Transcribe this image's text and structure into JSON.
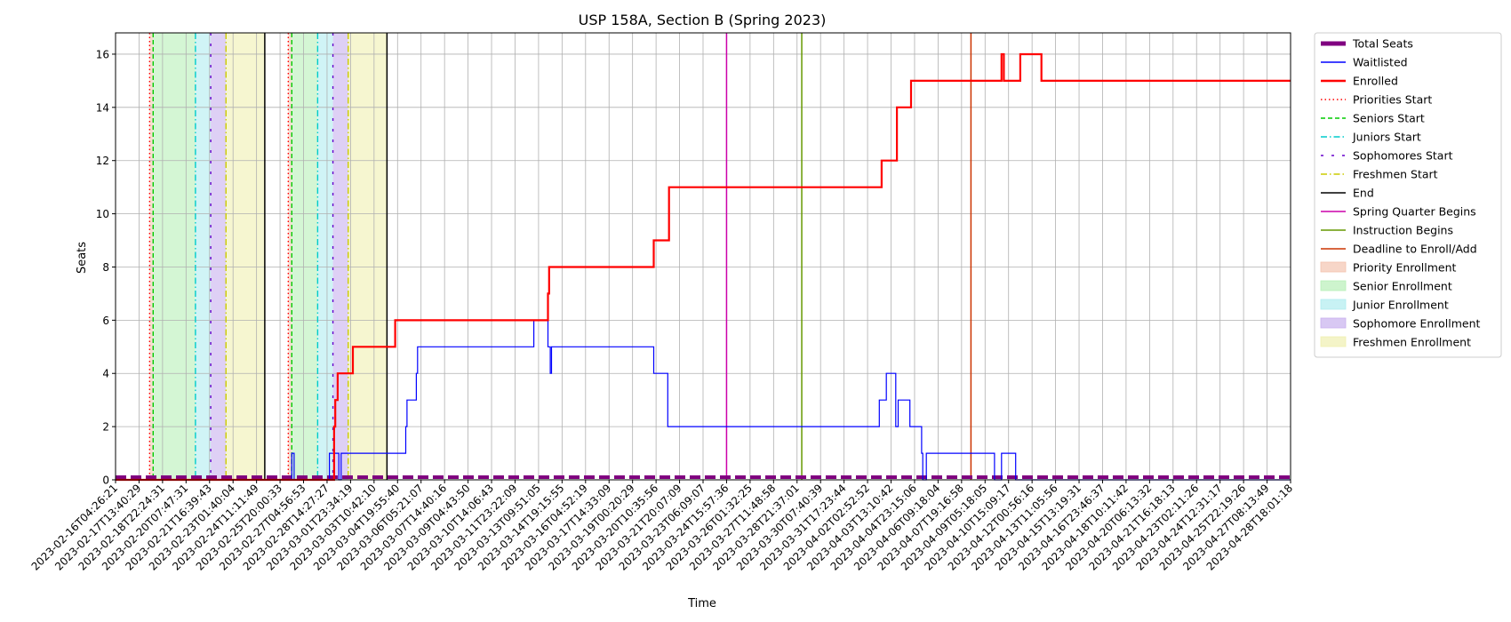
{
  "chart_data": {
    "type": "line",
    "title": "USP 158A, Section B (Spring 2023)",
    "xlabel": "Time",
    "ylabel": "Seats",
    "ylim": [
      0,
      16.8
    ],
    "yticks": [
      0,
      2,
      4,
      6,
      8,
      10,
      12,
      14,
      16
    ],
    "grid": true,
    "legend_position": "outside-right-top",
    "x_tick_labels": [
      "2023-02-16T04:26:21",
      "2023-02-17T13:40:29",
      "2023-02-18T22:24:31",
      "2023-02-20T07:47:31",
      "2023-02-21T16:39:43",
      "2023-02-23T01:40:04",
      "2023-02-24T11:11:49",
      "2023-02-25T20:00:33",
      "2023-02-27T04:56:53",
      "2023-02-28T14:27:27",
      "2023-03-01T23:34:19",
      "2023-03-03T10:42:10",
      "2023-03-04T19:55:40",
      "2023-03-06T05:21:07",
      "2023-03-07T14:40:16",
      "2023-03-09T04:43:50",
      "2023-03-10T14:06:43",
      "2023-03-11T23:22:09",
      "2023-03-13T09:51:05",
      "2023-03-14T19:15:55",
      "2023-03-16T04:52:19",
      "2023-03-17T14:33:09",
      "2023-03-19T00:20:29",
      "2023-03-20T10:35:56",
      "2023-03-21T20:07:09",
      "2023-03-23T06:09:07",
      "2023-03-24T15:57:36",
      "2023-03-26T01:32:25",
      "2023-03-27T11:48:58",
      "2023-03-28T21:37:01",
      "2023-03-30T07:40:39",
      "2023-03-31T17:23:44",
      "2023-04-02T02:52:52",
      "2023-04-03T13:10:42",
      "2023-04-04T23:15:06",
      "2023-04-06T09:18:04",
      "2023-04-07T19:16:58",
      "2023-04-09T05:18:05",
      "2023-04-10T15:09:17",
      "2023-04-12T00:56:16",
      "2023-04-13T11:05:56",
      "2023-04-15T13:19:31",
      "2023-04-16T23:46:37",
      "2023-04-18T10:11:42",
      "2023-04-20T06:13:32",
      "2023-04-21T16:18:13",
      "2023-04-23T02:11:26",
      "2023-04-24T12:31:17",
      "2023-04-25T22:19:26",
      "2023-04-27T08:13:49",
      "2023-04-28T18:01:18"
    ],
    "series": [
      {
        "name": "Total Seats",
        "color": "#800080",
        "style": "thick-dashed",
        "points": [
          [
            0,
            0.1
          ],
          [
            50.0,
            0.1
          ]
        ]
      },
      {
        "name": "Waitlisted",
        "color": "#0000ff",
        "style": "step",
        "points": [
          [
            0,
            0
          ],
          [
            7.5,
            0
          ],
          [
            7.5,
            1
          ],
          [
            7.6,
            1
          ],
          [
            7.6,
            0
          ],
          [
            9.1,
            0
          ],
          [
            9.1,
            1
          ],
          [
            9.5,
            1
          ],
          [
            9.5,
            0
          ],
          [
            9.6,
            0
          ],
          [
            9.6,
            1
          ],
          [
            12.35,
            1
          ],
          [
            12.35,
            2
          ],
          [
            12.4,
            2
          ],
          [
            12.4,
            3
          ],
          [
            12.8,
            3
          ],
          [
            12.8,
            4
          ],
          [
            12.85,
            4
          ],
          [
            12.85,
            5
          ],
          [
            17.8,
            5
          ],
          [
            17.8,
            6
          ],
          [
            18.4,
            6
          ],
          [
            18.4,
            5
          ],
          [
            18.5,
            5
          ],
          [
            18.5,
            4
          ],
          [
            18.55,
            4
          ],
          [
            18.55,
            5
          ],
          [
            22.9,
            5
          ],
          [
            22.9,
            4
          ],
          [
            23.5,
            4
          ],
          [
            23.5,
            2
          ],
          [
            32.5,
            2
          ],
          [
            32.5,
            3
          ],
          [
            32.8,
            3
          ],
          [
            32.8,
            4
          ],
          [
            33.2,
            4
          ],
          [
            33.2,
            2
          ],
          [
            33.3,
            2
          ],
          [
            33.3,
            3
          ],
          [
            33.8,
            3
          ],
          [
            33.8,
            2
          ],
          [
            34.3,
            2
          ],
          [
            34.3,
            1
          ],
          [
            34.35,
            1
          ],
          [
            34.35,
            0
          ],
          [
            34.5,
            0
          ],
          [
            34.5,
            1
          ],
          [
            37.4,
            1
          ],
          [
            37.4,
            0
          ],
          [
            37.7,
            0
          ],
          [
            37.7,
            1
          ],
          [
            38.3,
            1
          ],
          [
            38.3,
            0
          ],
          [
            50.0,
            0
          ]
        ]
      },
      {
        "name": "Enrolled",
        "color": "#ff0000",
        "style": "step",
        "points": [
          [
            0,
            0
          ],
          [
            9.3,
            0
          ],
          [
            9.3,
            2
          ],
          [
            9.35,
            2
          ],
          [
            9.35,
            3
          ],
          [
            9.45,
            3
          ],
          [
            9.45,
            4
          ],
          [
            10.1,
            4
          ],
          [
            10.1,
            5
          ],
          [
            11.9,
            5
          ],
          [
            11.9,
            6
          ],
          [
            18.4,
            6
          ],
          [
            18.4,
            7
          ],
          [
            18.45,
            7
          ],
          [
            18.45,
            8
          ],
          [
            22.9,
            8
          ],
          [
            22.9,
            9
          ],
          [
            23.55,
            9
          ],
          [
            23.55,
            11
          ],
          [
            32.6,
            11
          ],
          [
            32.6,
            12
          ],
          [
            33.25,
            12
          ],
          [
            33.25,
            14
          ],
          [
            33.85,
            14
          ],
          [
            33.85,
            15
          ],
          [
            37.7,
            15
          ],
          [
            37.7,
            16
          ],
          [
            37.8,
            16
          ],
          [
            37.8,
            15
          ],
          [
            38.5,
            15
          ],
          [
            38.5,
            16
          ],
          [
            39.4,
            16
          ],
          [
            39.4,
            15
          ],
          [
            50.0,
            15
          ]
        ]
      }
    ],
    "vertical_markers": [
      {
        "name": "Priorities Start",
        "color": "#ff0000",
        "style": "dotted",
        "x": [
          1.45,
          7.35
        ]
      },
      {
        "name": "Seniors Start",
        "color": "#00cc00",
        "style": "dashed",
        "x": [
          1.6,
          7.5
        ]
      },
      {
        "name": "Juniors Start",
        "color": "#00cccc",
        "style": "dashdot",
        "x": [
          3.4,
          8.6
        ]
      },
      {
        "name": "Sophomores Start",
        "color": "#6600cc",
        "style": "loose-dashed",
        "x": [
          4.05,
          9.25
        ]
      },
      {
        "name": "Freshmen Start",
        "color": "#cccc00",
        "style": "dashdot",
        "x": [
          4.7,
          9.9
        ]
      },
      {
        "name": "End",
        "color": "#000000",
        "style": "solid",
        "x": [
          6.35,
          11.55
        ]
      },
      {
        "name": "Spring Quarter Begins",
        "color": "#cc00aa",
        "style": "solid",
        "x": [
          26.0
        ]
      },
      {
        "name": "Instruction Begins",
        "color": "#669900",
        "style": "solid",
        "x": [
          29.2
        ]
      },
      {
        "name": "Deadline to Enroll/Add",
        "color": "#cc3300",
        "style": "solid",
        "x": [
          36.4
        ]
      }
    ],
    "shaded_periods": [
      {
        "name": "Priority Enrollment",
        "color": "#f4c4b0",
        "ranges": [
          [
            1.45,
            1.6
          ],
          [
            7.35,
            7.5
          ]
        ]
      },
      {
        "name": "Senior Enrollment",
        "color": "#b8f0b8",
        "ranges": [
          [
            1.6,
            3.4
          ],
          [
            7.5,
            8.6
          ]
        ]
      },
      {
        "name": "Junior Enrollment",
        "color": "#b0ecf0",
        "ranges": [
          [
            3.4,
            4.05
          ],
          [
            8.6,
            9.25
          ]
        ]
      },
      {
        "name": "Sophomore Enrollment",
        "color": "#c8b0ee",
        "ranges": [
          [
            4.05,
            4.7
          ],
          [
            9.25,
            9.9
          ]
        ]
      },
      {
        "name": "Freshmen Enrollment",
        "color": "#f0f0b0",
        "ranges": [
          [
            4.7,
            6.35
          ],
          [
            9.9,
            11.55
          ]
        ]
      }
    ]
  }
}
